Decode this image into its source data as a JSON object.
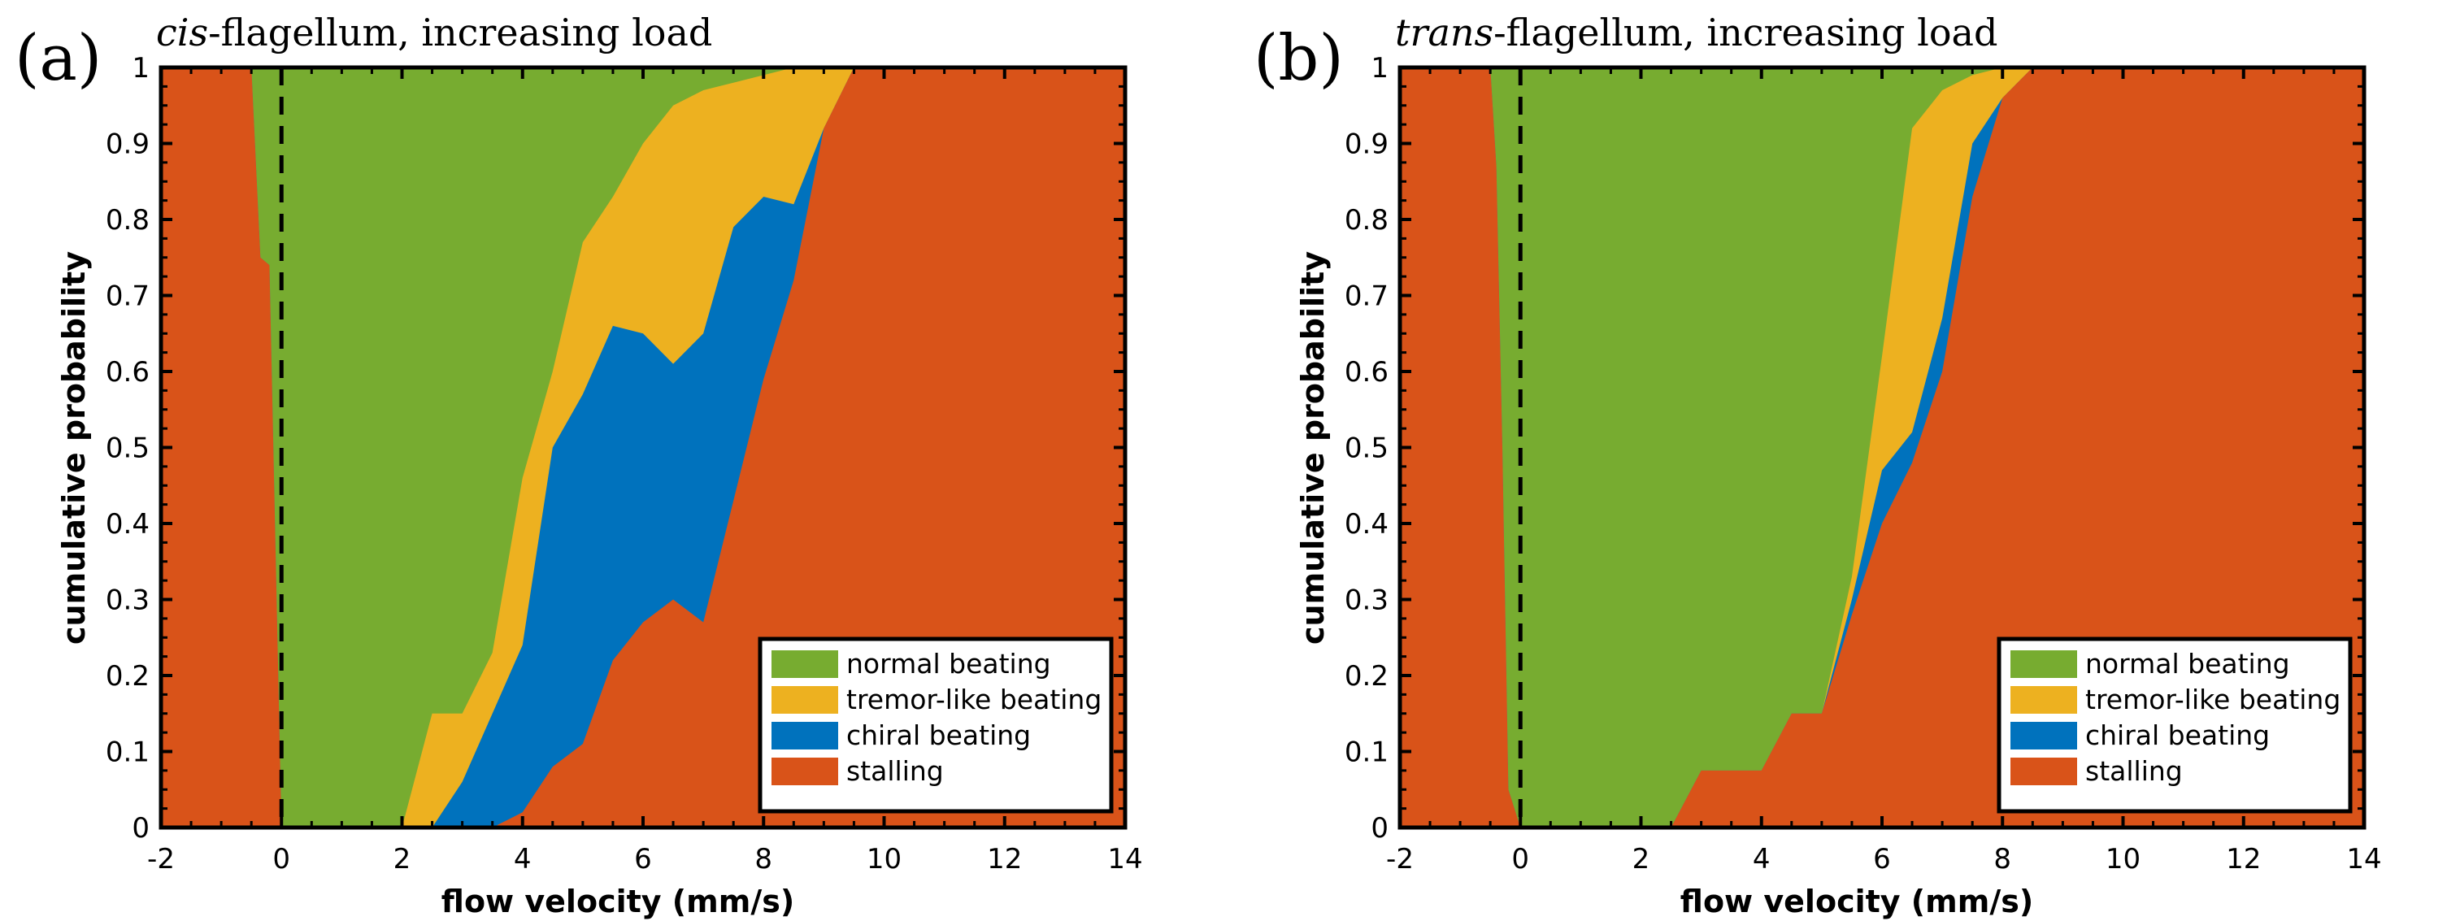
{
  "figure": {
    "colors": {
      "normal": "#77AC30",
      "tremor": "#EDB120",
      "chiral": "#0072BD",
      "stalling": "#D95319"
    },
    "legend_labels": [
      "normal beating",
      "tremor-like beating",
      "chiral beating",
      "stalling"
    ],
    "legend_placement": "bottom-right"
  },
  "chart_data": [
    {
      "type": "area",
      "panel_label": "(a)",
      "title_italic": "cis",
      "title_rest": "-flagellum, increasing load",
      "xlabel": "flow velocity (mm/s)",
      "ylabel": "cumulative probability",
      "xlim": [
        -2,
        14
      ],
      "ylim": [
        0,
        1
      ],
      "xticks": [
        "-2",
        "0",
        "2",
        "4",
        "6",
        "8",
        "10",
        "12",
        "14"
      ],
      "yticks": [
        "0",
        "0.1",
        "0.2",
        "0.3",
        "0.4",
        "0.5",
        "0.6",
        "0.7",
        "0.8",
        "0.9",
        "1"
      ],
      "reference_line_x": 0,
      "grid": false,
      "x": [
        -2,
        -0.5,
        -0.35,
        -0.2,
        0,
        2,
        2.5,
        3,
        3.5,
        4,
        4.5,
        5,
        5.5,
        6,
        6.5,
        7,
        7.5,
        8,
        8.5,
        9,
        9.5,
        14
      ],
      "series": [
        {
          "name": "stalling",
          "values": [
            1,
            1,
            0.75,
            0.74,
            0,
            0,
            0,
            0,
            0,
            0.02,
            0.08,
            0.11,
            0.22,
            0.27,
            0.3,
            0.27,
            0.43,
            0.59,
            0.72,
            0.92,
            1,
            1
          ]
        },
        {
          "name": "chiral beating",
          "values": [
            1,
            1,
            0.75,
            0.74,
            0,
            0,
            0,
            0.06,
            0.15,
            0.24,
            0.5,
            0.57,
            0.66,
            0.65,
            0.61,
            0.65,
            0.79,
            0.83,
            0.82,
            0.92,
            1,
            1
          ]
        },
        {
          "name": "tremor-like beating",
          "values": [
            1,
            1,
            0.75,
            0.74,
            0,
            0,
            0.15,
            0.15,
            0.23,
            0.46,
            0.6,
            0.77,
            0.83,
            0.9,
            0.95,
            0.97,
            0.98,
            0.99,
            1,
            1,
            1,
            1
          ]
        },
        {
          "name": "normal beating",
          "values": [
            1,
            1,
            1,
            1,
            1,
            1,
            1,
            1,
            1,
            1,
            1,
            1,
            1,
            1,
            1,
            1,
            1,
            1,
            1,
            1,
            1,
            1
          ]
        }
      ]
    },
    {
      "type": "area",
      "panel_label": "(b)",
      "title_italic": "trans",
      "title_rest": "-flagellum, increasing load",
      "xlabel": "flow velocity (mm/s)",
      "ylabel": "cumulative probability",
      "xlim": [
        -2,
        14
      ],
      "ylim": [
        0,
        1
      ],
      "xticks": [
        "-2",
        "0",
        "2",
        "4",
        "6",
        "8",
        "10",
        "12",
        "14"
      ],
      "yticks": [
        "0",
        "0.1",
        "0.2",
        "0.3",
        "0.4",
        "0.5",
        "0.6",
        "0.7",
        "0.8",
        "0.9",
        "1"
      ],
      "reference_line_x": 0,
      "grid": false,
      "x": [
        -2,
        -0.5,
        -0.4,
        -0.3,
        -0.2,
        0,
        2.5,
        3,
        3.5,
        4,
        4.5,
        5,
        5.5,
        6,
        6.5,
        7,
        7.5,
        8,
        8.5,
        14
      ],
      "series": [
        {
          "name": "stalling",
          "values": [
            1,
            1,
            0.87,
            0.5,
            0.05,
            0,
            0,
            0.075,
            0.075,
            0.075,
            0.15,
            0.15,
            0.28,
            0.4,
            0.48,
            0.6,
            0.83,
            0.96,
            1,
            1
          ]
        },
        {
          "name": "chiral beating",
          "values": [
            1,
            1,
            0.87,
            0.5,
            0.05,
            0,
            0,
            0.075,
            0.075,
            0.075,
            0.15,
            0.15,
            0.3,
            0.47,
            0.52,
            0.67,
            0.9,
            0.96,
            1,
            1
          ]
        },
        {
          "name": "tremor-like beating",
          "values": [
            1,
            1,
            0.87,
            0.5,
            0.05,
            0,
            0,
            0.075,
            0.075,
            0.075,
            0.15,
            0.15,
            0.33,
            0.62,
            0.92,
            0.97,
            0.99,
            1,
            1,
            1
          ]
        },
        {
          "name": "normal beating",
          "values": [
            1,
            1,
            1,
            1,
            1,
            1,
            1,
            1,
            1,
            1,
            1,
            1,
            1,
            1,
            1,
            1,
            1,
            1,
            1,
            1
          ]
        }
      ]
    }
  ]
}
